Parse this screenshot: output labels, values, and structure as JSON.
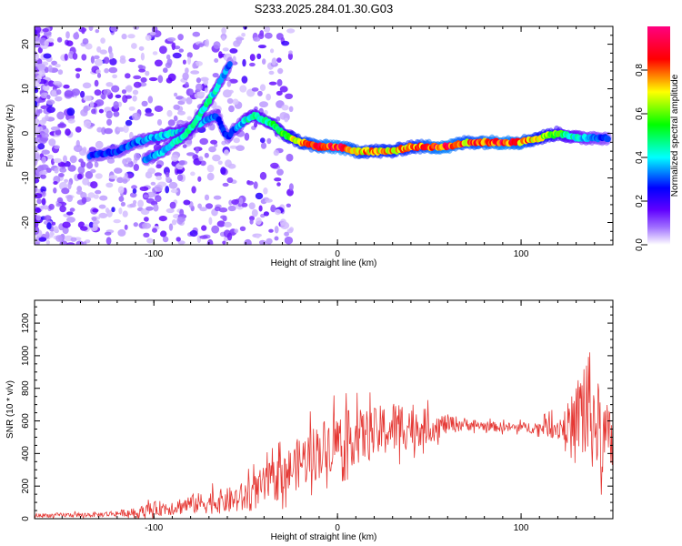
{
  "title": "S233.2025.284.01.30.G03",
  "chart_data": [
    {
      "type": "heatmap",
      "xlabel": "Height of straight line (km)",
      "ylabel": "Frequency (Hz)",
      "xlim": [
        -165,
        150
      ],
      "ylim": [
        -25,
        24
      ],
      "xticks": [
        -100,
        0,
        100
      ],
      "yticks": [
        -20,
        -10,
        0,
        10,
        20
      ],
      "colorbar": {
        "label": "Normalized spectral amplitude",
        "range": [
          0,
          1
        ],
        "ticks": [
          "0.0",
          "0.2",
          "0.4",
          "0.6",
          "0.8"
        ],
        "colors": [
          "#ffffff",
          "#7000ff",
          "#0000ff",
          "#00ffff",
          "#00ff00",
          "#ffff00",
          "#ff0000",
          "#ff0080"
        ]
      },
      "ridge": {
        "x": [
          -135,
          -120,
          -110,
          -100,
          -90,
          -80,
          -72,
          -66,
          -60,
          -56,
          -50,
          -45,
          -40,
          -35,
          -30,
          -20,
          -10,
          0,
          10,
          20,
          30,
          40,
          50,
          60,
          70,
          80,
          90,
          100,
          110,
          120,
          130,
          140,
          148
        ],
        "freq": [
          -5,
          -4,
          -2,
          -1,
          0,
          1,
          3,
          4,
          -1,
          1,
          3,
          4,
          3,
          2,
          0,
          -2,
          -3,
          -3,
          -4,
          -4,
          -4,
          -3,
          -3,
          -3,
          -2,
          -2,
          -2,
          -2,
          -1,
          0,
          -1,
          -1,
          -1
        ],
        "amplitude": [
          0.3,
          0.3,
          0.35,
          0.4,
          0.45,
          0.4,
          0.4,
          0.35,
          0.3,
          0.35,
          0.45,
          0.5,
          0.5,
          0.55,
          0.6,
          0.8,
          0.9,
          0.95,
          0.85,
          0.8,
          0.8,
          0.8,
          0.9,
          0.95,
          0.85,
          0.9,
          0.95,
          0.9,
          0.75,
          0.6,
          0.45,
          0.35,
          0.3
        ]
      },
      "branch": {
        "x": [
          -105,
          -95,
          -85,
          -78,
          -72,
          -66,
          -62,
          -58
        ],
        "freq": [
          -6,
          -4,
          -1,
          2,
          6,
          10,
          13,
          16
        ],
        "amplitude": [
          0.35,
          0.4,
          0.45,
          0.5,
          0.5,
          0.45,
          0.4,
          0.3
        ]
      }
    },
    {
      "type": "line",
      "xlabel": "Height of straight line (km)",
      "ylabel": "SNR (10 * v/v)",
      "xlim": [
        -165,
        150
      ],
      "ylim": [
        0,
        1340
      ],
      "xticks": [
        -100,
        0,
        100
      ],
      "yticks": [
        0,
        200,
        400,
        600,
        800,
        1000,
        1200
      ],
      "color": "#e53935",
      "envelope": {
        "x": [
          -165,
          -130,
          -110,
          -100,
          -90,
          -80,
          -70,
          -60,
          -50,
          -40,
          -30,
          -20,
          -10,
          0,
          10,
          20,
          30,
          40,
          50,
          60,
          70,
          80,
          90,
          100,
          110,
          120,
          125,
          130,
          135,
          140,
          145,
          150
        ],
        "mean": [
          20,
          25,
          40,
          60,
          70,
          90,
          100,
          110,
          130,
          200,
          260,
          350,
          420,
          480,
          500,
          520,
          560,
          580,
          560,
          580,
          580,
          570,
          560,
          560,
          560,
          560,
          580,
          620,
          700,
          600,
          500,
          450
        ],
        "noise": [
          12,
          15,
          25,
          45,
          50,
          60,
          70,
          80,
          100,
          120,
          140,
          160,
          180,
          180,
          170,
          160,
          170,
          150,
          100,
          60,
          40,
          30,
          30,
          30,
          40,
          80,
          120,
          200,
          450,
          300,
          250,
          200
        ]
      }
    }
  ]
}
